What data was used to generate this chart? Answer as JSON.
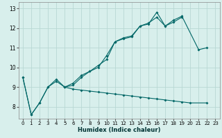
{
  "xlabel": "Humidex (Indice chaleur)",
  "bg_color": "#d8efec",
  "grid_color": "#b8d8d4",
  "line_color": "#006666",
  "xlim": [
    -0.5,
    23.5
  ],
  "ylim": [
    7.4,
    13.3
  ],
  "xticks": [
    0,
    1,
    2,
    3,
    4,
    5,
    6,
    7,
    8,
    9,
    10,
    11,
    12,
    13,
    14,
    15,
    16,
    17,
    18,
    19,
    20,
    21,
    22,
    23
  ],
  "yticks": [
    8,
    9,
    10,
    11,
    12,
    13
  ],
  "series": [
    {
      "x": [
        0,
        1,
        2,
        3,
        4,
        5,
        6,
        7,
        8,
        9,
        10,
        11,
        12,
        13,
        14,
        15,
        16,
        17,
        18,
        19,
        21,
        22
      ],
      "y": [
        9.5,
        7.6,
        8.2,
        9.0,
        9.4,
        9.0,
        9.1,
        9.5,
        9.8,
        10.0,
        10.6,
        11.3,
        11.5,
        11.6,
        12.1,
        12.2,
        12.8,
        12.1,
        12.4,
        12.6,
        10.9,
        11.0
      ]
    },
    {
      "x": [
        0,
        1,
        2,
        3,
        4,
        5,
        6,
        7,
        8,
        9,
        10,
        11,
        12,
        13,
        14,
        15,
        16,
        17,
        18,
        19
      ],
      "y": [
        9.5,
        7.6,
        8.2,
        9.0,
        9.3,
        9.0,
        9.2,
        9.6,
        9.8,
        10.1,
        10.4,
        11.3,
        11.45,
        11.55,
        12.1,
        12.25,
        12.55,
        12.1,
        12.3,
        12.55
      ]
    },
    {
      "x": [
        5,
        6,
        7,
        8,
        9,
        10,
        11,
        12,
        13,
        14,
        15,
        16,
        17,
        18,
        19,
        20,
        22
      ],
      "y": [
        9.0,
        8.9,
        8.85,
        8.8,
        8.75,
        8.7,
        8.65,
        8.6,
        8.55,
        8.5,
        8.45,
        8.4,
        8.35,
        8.3,
        8.25,
        8.2,
        8.2
      ]
    }
  ]
}
